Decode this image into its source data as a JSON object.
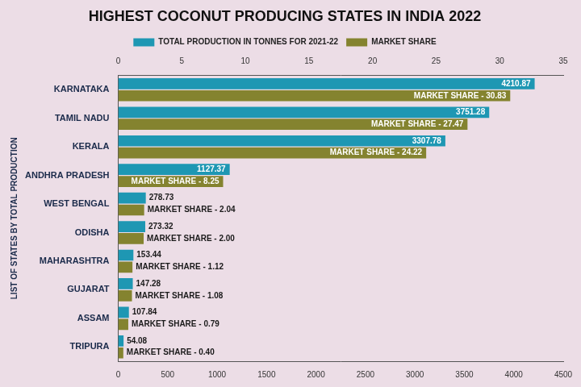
{
  "chart_data": {
    "type": "bar",
    "title": "HIGHEST COCONUT PRODUCING STATES IN INDIA 2022",
    "orientation": "horizontal",
    "y_label": "LIST OF STATES BY TOTAL PRODUCTION",
    "categories": [
      "KARNATAKA",
      "TAMIL NADU",
      "KERALA",
      "ANDHRA PRADESH",
      "WEST BENGAL",
      "ODISHA",
      "MAHARASHTRA",
      "GUJARAT",
      "ASSAM",
      "TRIPURA"
    ],
    "series": [
      {
        "name": "TOTAL PRODUCTION IN TONNES FOR 2021-22",
        "color": "#1e97b3",
        "values": [
          4210.87,
          3751.28,
          3307.78,
          1127.37,
          278.73,
          273.32,
          153.44,
          147.28,
          107.84,
          54.08
        ]
      },
      {
        "name": "MARKET SHARE",
        "color": "#84832f",
        "axis": "x2",
        "values": [
          30.83,
          27.47,
          24.22,
          8.25,
          2.04,
          2.0,
          1.12,
          1.08,
          0.79,
          0.4
        ],
        "value_labels": [
          "MARKET SHARE - 30.83",
          "MARKET SHARE - 27.47",
          "MARKET SHARE - 24.22",
          "MARKET SHARE - 8.25",
          "MARKET SHARE - 2.04",
          "MARKET SHARE - 2.00",
          "MARKET SHARE - 1.12",
          "MARKET SHARE - 1.08",
          "MARKET SHARE - 0.79",
          "MARKET SHARE - 0.40"
        ]
      }
    ],
    "xlim": [
      0,
      4500
    ],
    "xticks": [
      0,
      500,
      1000,
      1500,
      2000,
      2500,
      3000,
      3500,
      4000,
      4500
    ],
    "x2lim": [
      0,
      35
    ],
    "x2ticks": [
      0,
      5,
      10,
      15,
      20,
      25,
      30,
      35
    ],
    "legend": "top",
    "data_labels": true,
    "grid": false
  }
}
